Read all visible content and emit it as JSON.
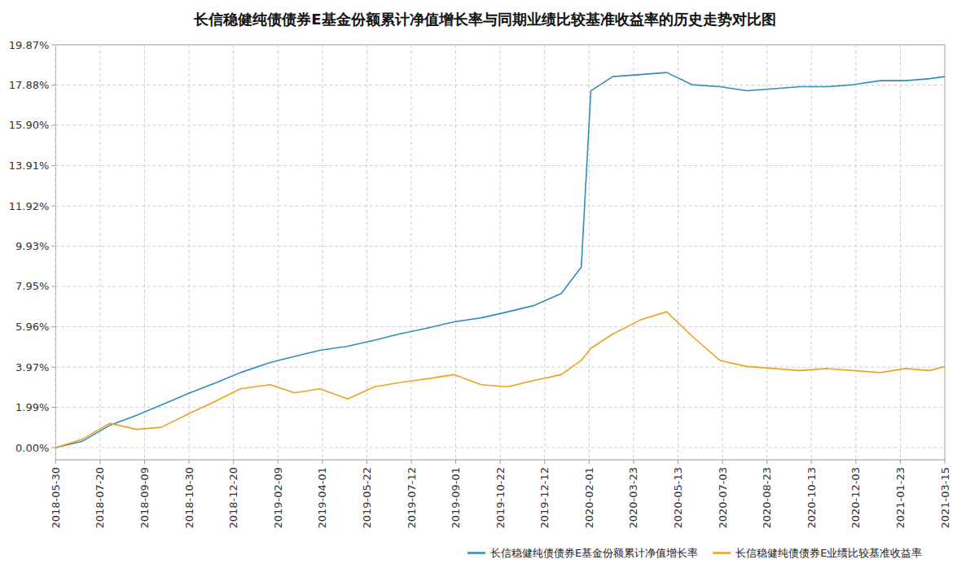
{
  "chart_data": {
    "type": "line",
    "title": "长信稳健纯债债券E基金份额累计净值增长率与同期业绩比较基准收益率的历史走势对比图",
    "x": [
      "2018-05-30",
      "2018-06-29",
      "2018-07-31",
      "2018-08-31",
      "2018-09-28",
      "2018-10-31",
      "2018-11-30",
      "2018-12-28",
      "2019-01-31",
      "2019-02-28",
      "2019-03-29",
      "2019-04-30",
      "2019-05-31",
      "2019-06-28",
      "2019-07-31",
      "2019-08-30",
      "2019-09-30",
      "2019-10-31",
      "2019-11-29",
      "2019-12-31",
      "2020-01-23",
      "2020-02-03",
      "2020-02-28",
      "2020-03-31",
      "2020-04-30",
      "2020-05-29",
      "2020-06-30",
      "2020-07-31",
      "2020-08-31",
      "2020-09-30",
      "2020-10-30",
      "2020-11-30",
      "2020-12-31",
      "2021-01-29",
      "2021-02-26",
      "2021-03-15"
    ],
    "series": [
      {
        "name": "长信稳健纯债债券E基金份额累计净值增长率",
        "color": "#2f8fb8",
        "values": [
          0,
          0.3,
          1.1,
          1.6,
          2.1,
          2.7,
          3.2,
          3.7,
          4.2,
          4.5,
          4.8,
          5.0,
          5.3,
          5.6,
          5.9,
          6.2,
          6.4,
          6.7,
          7.0,
          7.6,
          8.9,
          17.6,
          18.3,
          18.4,
          18.5,
          17.9,
          17.8,
          17.6,
          17.7,
          17.8,
          17.8,
          17.9,
          18.1,
          18.1,
          18.2,
          18.3
        ]
      },
      {
        "name": "长信稳健纯债债券E业绩比较基准收益率",
        "color": "#f0a020",
        "values": [
          0,
          0.4,
          1.2,
          0.9,
          1.0,
          1.7,
          2.3,
          2.9,
          3.1,
          2.7,
          2.9,
          2.4,
          3.0,
          3.2,
          3.4,
          3.6,
          3.1,
          3.0,
          3.3,
          3.6,
          4.3,
          4.9,
          5.6,
          6.3,
          6.7,
          5.5,
          4.3,
          4.0,
          3.9,
          3.8,
          3.9,
          3.8,
          3.7,
          3.9,
          3.8,
          4.0
        ]
      }
    ],
    "xlim": [
      "2018-05-30",
      "2021-03-15"
    ],
    "xticks": [
      "2018-05-30",
      "2018-07-20",
      "2018-09-09",
      "2018-10-30",
      "2018-12-20",
      "2019-02-09",
      "2019-04-01",
      "2019-05-22",
      "2019-07-12",
      "2019-09-01",
      "2019-10-22",
      "2019-12-12",
      "2020-02-01",
      "2020-03-23",
      "2020-05-13",
      "2020-07-03",
      "2020-08-23",
      "2020-10-13",
      "2020-12-03",
      "2021-01-23",
      "2021-03-15"
    ],
    "ylim": [
      -0.6,
      19.87
    ],
    "yticks": [
      {
        "value": 0,
        "label": "0.00%"
      },
      {
        "value": 1.99,
        "label": "1.99%"
      },
      {
        "value": 3.97,
        "label": "3.97%"
      },
      {
        "value": 5.96,
        "label": "5.96%"
      },
      {
        "value": 7.95,
        "label": "7.95%"
      },
      {
        "value": 9.93,
        "label": "9.93%"
      },
      {
        "value": 11.92,
        "label": "11.92%"
      },
      {
        "value": 13.91,
        "label": "13.91%"
      },
      {
        "value": 15.9,
        "label": "15.90%"
      },
      {
        "value": 17.88,
        "label": "17.88%"
      },
      {
        "value": 19.87,
        "label": "19.87%"
      }
    ],
    "grid": true,
    "legend": "bottom-right"
  }
}
